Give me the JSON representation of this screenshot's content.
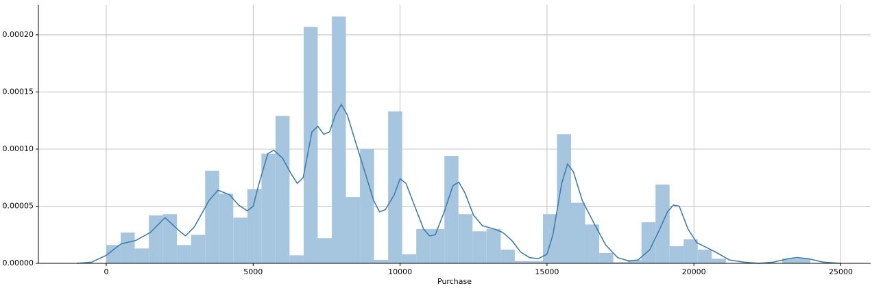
{
  "chart_data": {
    "type": "histogram",
    "xlabel": "Purchase",
    "bins": [
      12,
      491,
      970,
      1449,
      1928,
      2407,
      2886,
      3365,
      3844,
      4323,
      4802,
      5281,
      5760,
      6239,
      6718,
      7197,
      7676,
      8155,
      8634,
      9113,
      9592,
      10071,
      10550,
      11029,
      11508,
      11987,
      12466,
      12945,
      13424,
      13903,
      14382,
      14861,
      15340,
      15819,
      16298,
      16777,
      17256,
      17735,
      18214,
      18693,
      19172,
      19651,
      20130,
      20609,
      21088,
      21567,
      22046,
      22525,
      23004,
      23483,
      23962
    ],
    "values": [
      1.6e-05,
      2.7e-05,
      1.3e-05,
      4.2e-05,
      4.3e-05,
      1.6e-05,
      2.5e-05,
      8.1e-05,
      6.1e-05,
      4e-05,
      6.5e-05,
      9.6e-05,
      0.000129,
      7e-06,
      0.000207,
      2.2e-05,
      0.000216,
      5.8e-05,
      0.0001,
      3e-06,
      0.000133,
      8e-06,
      3e-05,
      3e-05,
      9.4e-05,
      4.3e-05,
      2.8e-05,
      3e-05,
      1.2e-05,
      2e-06,
      2e-06,
      4.3e-05,
      0.000113,
      5.3e-05,
      3.4e-05,
      9e-06,
      1e-06,
      3e-06,
      3.6e-05,
      6.9e-05,
      1.5e-05,
      2.1e-05,
      1.2e-05,
      4e-06,
      0,
      0,
      0,
      0,
      4e-06,
      4e-06
    ],
    "color": "#a6c6df",
    "kde": {
      "color": "#3d7eae",
      "x": [
        -1000,
        -500,
        0,
        500,
        1000,
        1500,
        2000,
        2500,
        2700,
        3000,
        3500,
        3800,
        4200,
        4500,
        4800,
        5000,
        5200,
        5500,
        5700,
        6000,
        6300,
        6500,
        6700,
        7000,
        7200,
        7400,
        7600,
        7800,
        8000,
        8200,
        8500,
        8800,
        9100,
        9300,
        9500,
        9800,
        10000,
        10200,
        10500,
        10800,
        11000,
        11200,
        11500,
        11800,
        12000,
        12200,
        12500,
        12800,
        13200,
        13500,
        13800,
        14100,
        14400,
        14700,
        15000,
        15200,
        15500,
        15700,
        15900,
        16200,
        16600,
        17000,
        17400,
        17800,
        18100,
        18500,
        18800,
        19100,
        19300,
        19500,
        19800,
        20100,
        20500,
        20800,
        21200,
        21700,
        22200,
        22700,
        23200,
        23500,
        23900,
        24400,
        25000
      ],
      "values": [
        0,
        1e-06,
        7e-06,
        1.7e-05,
        2e-05,
        2.7e-05,
        4e-05,
        2.8e-05,
        2.4e-05,
        3.2e-05,
        5.5e-05,
        6.4e-05,
        6e-05,
        5.1e-05,
        4.6e-05,
        5e-05,
        7e-05,
        9.6e-05,
        9.9e-05,
        9.2e-05,
        7.8e-05,
        7e-05,
        7.5e-05,
        0.000115,
        0.00012,
        0.000113,
        0.000115,
        0.00013,
        0.000139,
        0.00013,
        0.000105,
        8e-05,
        5.5e-05,
        4.5e-05,
        4.7e-05,
        6e-05,
        7.4e-05,
        7e-05,
        5e-05,
        3e-05,
        2.4e-05,
        2.5e-05,
        4.5e-05,
        6.8e-05,
        7.1e-05,
        6.2e-05,
        4.2e-05,
        3.3e-05,
        3e-05,
        2.7e-05,
        2e-05,
        1e-05,
        5e-06,
        4e-06,
        8e-06,
        2.5e-05,
        7e-05,
        8.7e-05,
        8e-05,
        5.5e-05,
        3.5e-05,
        1.6e-05,
        5e-06,
        2e-06,
        3e-06,
        1.2e-05,
        2.8e-05,
        4.5e-05,
        5.1e-05,
        5e-05,
        3e-05,
        1.8e-05,
        1.3e-05,
        9e-06,
        3e-06,
        1e-06,
        0,
        1e-06,
        4e-06,
        5e-06,
        4e-06,
        1e-06,
        0
      ]
    },
    "xlim": [
      -2310,
      26015
    ],
    "ylim": [
      0,
      0.0002263
    ],
    "xticks": [
      0,
      5000,
      10000,
      15000,
      20000,
      25000
    ],
    "yticks": [
      {
        "value": 0,
        "label": "0.00000"
      },
      {
        "value": 5e-05,
        "label": "0.00005"
      },
      {
        "value": 0.0001,
        "label": "0.00010"
      },
      {
        "value": 0.00015,
        "label": "0.00015"
      },
      {
        "value": 0.0002,
        "label": "0.00020"
      }
    ],
    "grid": true
  }
}
